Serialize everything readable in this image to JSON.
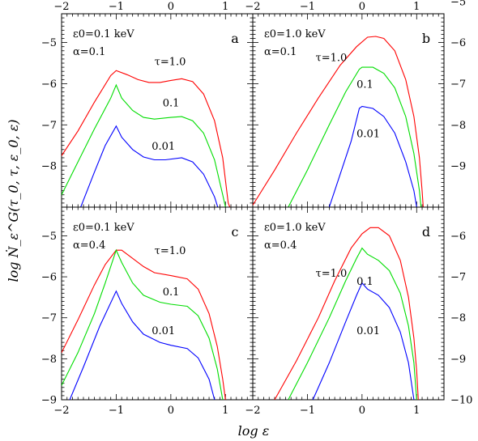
{
  "figure": {
    "ylabel": "log Ṅ_ε^G(τ_0, τ, ε_0, ε)",
    "xlabel": "log ε"
  },
  "colors": {
    "tau_1.0": "#ff0000",
    "tau_0.1": "#00dd00",
    "tau_0.01": "#0000ff",
    "frame": "#000000"
  },
  "chart_data": [
    {
      "type": "line",
      "panel_label": "a",
      "annotation_lines": [
        "ε0=0.1 keV",
        "α=0.1"
      ],
      "xlim": [
        -2,
        1.5
      ],
      "ylim": [
        -9,
        -4.3
      ],
      "x_ticks": [
        -2,
        -1,
        0,
        1
      ],
      "y_ticks": [
        -8,
        -7,
        -6,
        -5
      ],
      "y_tick_labels": [
        "−8",
        "−7",
        "−6",
        "−5"
      ],
      "x_tick_labels": [
        "−2",
        "−1",
        "0",
        "1"
      ],
      "series": [
        {
          "name": "τ=1.0",
          "color": "#ff0000",
          "points": [
            [
              -2,
              -7.75
            ],
            [
              -1.7,
              -7.15
            ],
            [
              -1.4,
              -6.45
            ],
            [
              -1.1,
              -5.8
            ],
            [
              -1.0,
              -5.68
            ],
            [
              -0.8,
              -5.78
            ],
            [
              -0.6,
              -5.9
            ],
            [
              -0.4,
              -5.97
            ],
            [
              -0.2,
              -5.97
            ],
            [
              0.0,
              -5.92
            ],
            [
              0.2,
              -5.88
            ],
            [
              0.4,
              -5.95
            ],
            [
              0.6,
              -6.25
            ],
            [
              0.8,
              -6.9
            ],
            [
              0.95,
              -7.8
            ],
            [
              1.05,
              -8.9
            ],
            [
              1.08,
              -9.0
            ]
          ]
        },
        {
          "name": "0.1",
          "color": "#00dd00",
          "points": [
            [
              -2,
              -8.7
            ],
            [
              -1.7,
              -7.9
            ],
            [
              -1.4,
              -7.1
            ],
            [
              -1.1,
              -6.35
            ],
            [
              -1.0,
              -6.03
            ],
            [
              -0.9,
              -6.35
            ],
            [
              -0.7,
              -6.65
            ],
            [
              -0.5,
              -6.82
            ],
            [
              -0.3,
              -6.86
            ],
            [
              0.0,
              -6.82
            ],
            [
              0.2,
              -6.8
            ],
            [
              0.4,
              -6.9
            ],
            [
              0.6,
              -7.2
            ],
            [
              0.8,
              -7.85
            ],
            [
              0.95,
              -8.7
            ],
            [
              1.0,
              -9.0
            ]
          ]
        },
        {
          "name": "0.01",
          "color": "#0000ff",
          "points": [
            [
              -1.65,
              -9.0
            ],
            [
              -1.4,
              -8.15
            ],
            [
              -1.2,
              -7.5
            ],
            [
              -1.0,
              -7.03
            ],
            [
              -0.9,
              -7.3
            ],
            [
              -0.7,
              -7.6
            ],
            [
              -0.5,
              -7.78
            ],
            [
              -0.3,
              -7.85
            ],
            [
              -0.1,
              -7.85
            ],
            [
              0.2,
              -7.8
            ],
            [
              0.4,
              -7.9
            ],
            [
              0.6,
              -8.2
            ],
            [
              0.8,
              -8.75
            ],
            [
              0.86,
              -9.0
            ]
          ]
        }
      ],
      "labels": [
        {
          "text": "τ=1.0",
          "x": -0.3,
          "y": -5.55
        },
        {
          "text": "0.1",
          "x": -0.15,
          "y": -6.55
        },
        {
          "text": "0.01",
          "x": -0.35,
          "y": -7.6
        }
      ]
    },
    {
      "type": "line",
      "panel_label": "b",
      "annotation_lines": [
        "ε0=1.0 keV",
        "α=0.1"
      ],
      "xlim": [
        -2,
        1.5
      ],
      "ylim": [
        -10,
        -5.3
      ],
      "x_ticks": [
        -2,
        -1,
        0,
        1
      ],
      "y_ticks": [
        -9,
        -8,
        -7,
        -6,
        -5
      ],
      "y_tick_labels": [
        "−9",
        "−8",
        "−7",
        "−6",
        "−5"
      ],
      "x_tick_labels": [
        "−2",
        "−1",
        "0",
        "1"
      ],
      "series": [
        {
          "name": "τ=1.0",
          "color": "#ff0000",
          "points": [
            [
              -2,
              -9.95
            ],
            [
              -1.6,
              -9.1
            ],
            [
              -1.2,
              -8.2
            ],
            [
              -0.8,
              -7.35
            ],
            [
              -0.4,
              -6.55
            ],
            [
              -0.1,
              -6.1
            ],
            [
              0.1,
              -5.87
            ],
            [
              0.25,
              -5.85
            ],
            [
              0.4,
              -5.9
            ],
            [
              0.6,
              -6.2
            ],
            [
              0.8,
              -6.9
            ],
            [
              0.95,
              -7.8
            ],
            [
              1.05,
              -8.8
            ],
            [
              1.1,
              -9.6
            ],
            [
              1.12,
              -10.0
            ]
          ]
        },
        {
          "name": "0.1",
          "color": "#00dd00",
          "points": [
            [
              -1.35,
              -10.0
            ],
            [
              -1.0,
              -9.1
            ],
            [
              -0.6,
              -8.0
            ],
            [
              -0.3,
              -7.2
            ],
            [
              -0.05,
              -6.65
            ],
            [
              0.0,
              -6.6
            ],
            [
              0.2,
              -6.6
            ],
            [
              0.4,
              -6.75
            ],
            [
              0.6,
              -7.1
            ],
            [
              0.8,
              -7.8
            ],
            [
              0.95,
              -8.7
            ],
            [
              1.05,
              -9.6
            ],
            [
              1.08,
              -10.0
            ]
          ]
        },
        {
          "name": "0.01",
          "color": "#0000ff",
          "points": [
            [
              -0.6,
              -10.0
            ],
            [
              -0.4,
              -9.2
            ],
            [
              -0.2,
              -8.4
            ],
            [
              -0.05,
              -7.6
            ],
            [
              0.0,
              -7.55
            ],
            [
              0.2,
              -7.6
            ],
            [
              0.4,
              -7.8
            ],
            [
              0.6,
              -8.2
            ],
            [
              0.8,
              -8.9
            ],
            [
              0.95,
              -9.6
            ],
            [
              1.0,
              -10.0
            ]
          ]
        }
      ],
      "labels": [
        {
          "text": "τ=1.0",
          "x": -0.85,
          "y": -6.45
        },
        {
          "text": "0.1",
          "x": -0.1,
          "y": -7.1
        },
        {
          "text": "0.01",
          "x": -0.1,
          "y": -8.3
        }
      ]
    },
    {
      "type": "line",
      "panel_label": "c",
      "annotation_lines": [
        "ε0=0.1 keV",
        "α=0.4"
      ],
      "xlim": [
        -2,
        1.5
      ],
      "ylim": [
        -9,
        -4.3
      ],
      "x_ticks": [
        -2,
        -1,
        0,
        1
      ],
      "y_ticks": [
        -9,
        -8,
        -7,
        -6,
        -5
      ],
      "y_tick_labels": [
        "−9",
        "−8",
        "−7",
        "−6",
        "−5"
      ],
      "x_tick_labels": [
        "−2",
        "−1",
        "0",
        "1"
      ],
      "series": [
        {
          "name": "τ=1.0",
          "color": "#ff0000",
          "points": [
            [
              -2,
              -7.85
            ],
            [
              -1.7,
              -7.05
            ],
            [
              -1.4,
              -6.2
            ],
            [
              -1.2,
              -5.7
            ],
            [
              -1.0,
              -5.35
            ],
            [
              -0.9,
              -5.35
            ],
            [
              -0.7,
              -5.55
            ],
            [
              -0.5,
              -5.75
            ],
            [
              -0.3,
              -5.9
            ],
            [
              0.0,
              -5.97
            ],
            [
              0.3,
              -6.05
            ],
            [
              0.5,
              -6.3
            ],
            [
              0.7,
              -6.9
            ],
            [
              0.85,
              -7.7
            ],
            [
              0.95,
              -8.5
            ],
            [
              1.0,
              -9.0
            ]
          ]
        },
        {
          "name": "0.1",
          "color": "#00dd00",
          "points": [
            [
              -2,
              -8.65
            ],
            [
              -1.7,
              -7.85
            ],
            [
              -1.4,
              -6.9
            ],
            [
              -1.2,
              -6.15
            ],
            [
              -1.0,
              -5.35
            ],
            [
              -0.9,
              -5.65
            ],
            [
              -0.7,
              -6.15
            ],
            [
              -0.5,
              -6.45
            ],
            [
              -0.2,
              -6.62
            ],
            [
              0.0,
              -6.67
            ],
            [
              0.3,
              -6.72
            ],
            [
              0.5,
              -6.95
            ],
            [
              0.7,
              -7.5
            ],
            [
              0.85,
              -8.25
            ],
            [
              0.95,
              -9.0
            ]
          ]
        },
        {
          "name": "0.01",
          "color": "#0000ff",
          "points": [
            [
              -1.85,
              -9.0
            ],
            [
              -1.6,
              -8.2
            ],
            [
              -1.3,
              -7.2
            ],
            [
              -1.0,
              -6.35
            ],
            [
              -0.9,
              -6.65
            ],
            [
              -0.7,
              -7.1
            ],
            [
              -0.5,
              -7.4
            ],
            [
              -0.2,
              -7.6
            ],
            [
              0.0,
              -7.67
            ],
            [
              0.3,
              -7.75
            ],
            [
              0.5,
              -7.98
            ],
            [
              0.7,
              -8.5
            ],
            [
              0.8,
              -9.0
            ]
          ]
        }
      ],
      "labels": [
        {
          "text": "τ=1.0",
          "x": -0.3,
          "y": -5.45
        },
        {
          "text": "0.1",
          "x": -0.15,
          "y": -6.45
        },
        {
          "text": "0.01",
          "x": -0.35,
          "y": -7.4
        }
      ]
    },
    {
      "type": "line",
      "panel_label": "d",
      "annotation_lines": [
        "ε0=1.0 keV",
        "α=0.4"
      ],
      "xlim": [
        -2,
        1.5
      ],
      "ylim": [
        -10,
        -5.3
      ],
      "x_ticks": [
        -2,
        -1,
        0,
        1
      ],
      "y_ticks": [
        -10,
        -9,
        -8,
        -7,
        -6
      ],
      "y_tick_labels": [
        "−10",
        "−9",
        "−8",
        "−7",
        "−6"
      ],
      "x_tick_labels": [
        "−2",
        "−1",
        "0",
        "1"
      ],
      "series": [
        {
          "name": "τ=1.0",
          "color": "#ff0000",
          "points": [
            [
              -1.6,
              -10.0
            ],
            [
              -1.2,
              -9.05
            ],
            [
              -0.8,
              -8.0
            ],
            [
              -0.5,
              -7.1
            ],
            [
              -0.2,
              -6.3
            ],
            [
              0.0,
              -5.95
            ],
            [
              0.15,
              -5.8
            ],
            [
              0.3,
              -5.8
            ],
            [
              0.5,
              -6.0
            ],
            [
              0.7,
              -6.6
            ],
            [
              0.85,
              -7.5
            ],
            [
              0.95,
              -8.5
            ],
            [
              1.0,
              -9.3
            ],
            [
              1.03,
              -10.0
            ]
          ]
        },
        {
          "name": "0.1",
          "color": "#00dd00",
          "points": [
            [
              -1.35,
              -10.0
            ],
            [
              -1.0,
              -9.1
            ],
            [
              -0.6,
              -8.0
            ],
            [
              -0.3,
              -7.1
            ],
            [
              -0.1,
              -6.55
            ],
            [
              0.0,
              -6.3
            ],
            [
              0.1,
              -6.45
            ],
            [
              0.3,
              -6.6
            ],
            [
              0.5,
              -6.85
            ],
            [
              0.7,
              -7.4
            ],
            [
              0.85,
              -8.2
            ],
            [
              0.95,
              -9.1
            ],
            [
              1.0,
              -10.0
            ]
          ]
        },
        {
          "name": "0.01",
          "color": "#0000ff",
          "points": [
            [
              -0.9,
              -10.0
            ],
            [
              -0.6,
              -9.1
            ],
            [
              -0.3,
              -8.1
            ],
            [
              -0.1,
              -7.45
            ],
            [
              0.0,
              -7.15
            ],
            [
              0.1,
              -7.3
            ],
            [
              0.3,
              -7.45
            ],
            [
              0.5,
              -7.75
            ],
            [
              0.7,
              -8.35
            ],
            [
              0.85,
              -9.1
            ],
            [
              0.95,
              -10.0
            ]
          ]
        }
      ],
      "labels": [
        {
          "text": "τ=1.0",
          "x": -0.85,
          "y": -7.0
        },
        {
          "text": "0.1",
          "x": -0.1,
          "y": -7.2
        },
        {
          "text": "0.01",
          "x": -0.1,
          "y": -8.4
        }
      ]
    }
  ]
}
